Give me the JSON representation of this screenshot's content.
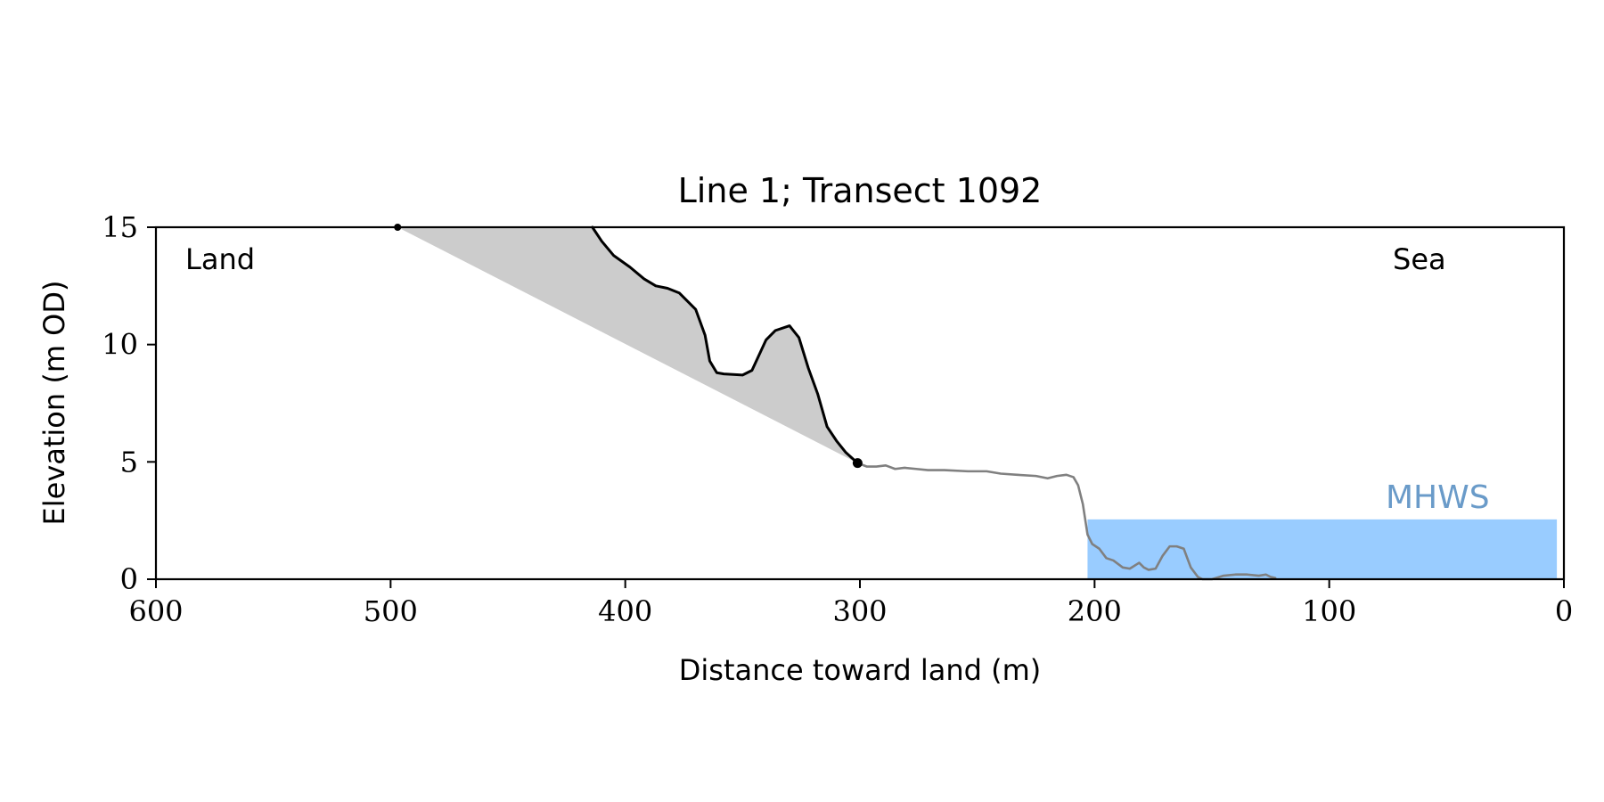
{
  "chart_data": {
    "type": "line",
    "title": "Line 1; Transect 1092",
    "xlabel": "Distance toward land (m)",
    "ylabel": "Elevation (m OD)",
    "xlim": [
      600,
      0
    ],
    "ylim": [
      0,
      15
    ],
    "x_inverted": true,
    "xticks": [
      600,
      500,
      400,
      300,
      200,
      100,
      0
    ],
    "yticks": [
      0,
      5,
      10,
      15
    ],
    "grid": false,
    "annotations": {
      "land": "Land",
      "sea": "Sea",
      "mhws": "MHWS"
    },
    "mhws": {
      "elevation": 2.55,
      "x_from": 203,
      "x_to": 3,
      "color": "#99ccff",
      "label_color": "#6a9bc9"
    },
    "colors": {
      "cliff": "#000000",
      "profile": "#808080",
      "shade": "#cccccc",
      "markers": "#000000"
    },
    "series": [
      {
        "role": "cliff",
        "x": [
          414,
          410,
          405,
          398,
          392,
          387,
          382,
          377,
          370,
          366,
          364,
          361,
          358,
          350,
          346,
          340,
          336,
          330,
          326,
          322,
          318,
          314,
          310,
          306,
          301
        ],
        "y": [
          15.0,
          14.4,
          13.8,
          13.3,
          12.8,
          12.5,
          12.4,
          12.2,
          11.5,
          10.4,
          9.3,
          8.8,
          8.75,
          8.7,
          8.9,
          10.2,
          10.6,
          10.8,
          10.3,
          9.0,
          7.9,
          6.5,
          5.9,
          5.4,
          4.95
        ]
      },
      {
        "role": "profile",
        "x": [
          301,
          297,
          293,
          289,
          285,
          281,
          276,
          271,
          264,
          254,
          246,
          240,
          233,
          225,
          220,
          216,
          212,
          209,
          207,
          205,
          203,
          201,
          198,
          195,
          192,
          188,
          185,
          181,
          179,
          177,
          174,
          171,
          168,
          165,
          162,
          159,
          156,
          154,
          150,
          145,
          140,
          135,
          130,
          127,
          125,
          123
        ],
        "y": [
          4.95,
          4.8,
          4.8,
          4.85,
          4.7,
          4.75,
          4.7,
          4.65,
          4.65,
          4.6,
          4.6,
          4.5,
          4.45,
          4.4,
          4.3,
          4.4,
          4.45,
          4.35,
          4.0,
          3.2,
          1.9,
          1.5,
          1.3,
          0.9,
          0.8,
          0.5,
          0.45,
          0.7,
          0.5,
          0.4,
          0.45,
          1.0,
          1.4,
          1.4,
          1.3,
          0.5,
          0.1,
          0.0,
          0.0,
          0.15,
          0.2,
          0.2,
          0.15,
          0.2,
          0.1,
          0.05
        ]
      }
    ],
    "markers": [
      {
        "x": 301,
        "y": 4.95
      },
      {
        "x": 497,
        "y": 15.0
      }
    ],
    "shaded_region": {
      "upper_x": [
        497,
        414,
        410,
        405,
        398,
        392,
        387,
        382,
        377,
        370,
        366,
        364,
        361,
        358,
        350,
        346,
        340,
        336,
        330,
        326,
        322,
        318,
        314,
        310,
        306,
        301
      ],
      "upper_y": [
        15.0,
        15.0,
        14.4,
        13.8,
        13.3,
        12.8,
        12.5,
        12.4,
        12.2,
        11.5,
        10.4,
        9.3,
        8.8,
        8.75,
        8.7,
        8.9,
        10.2,
        10.6,
        10.8,
        10.3,
        9.0,
        7.9,
        6.5,
        5.9,
        5.4,
        4.95
      ]
    }
  }
}
